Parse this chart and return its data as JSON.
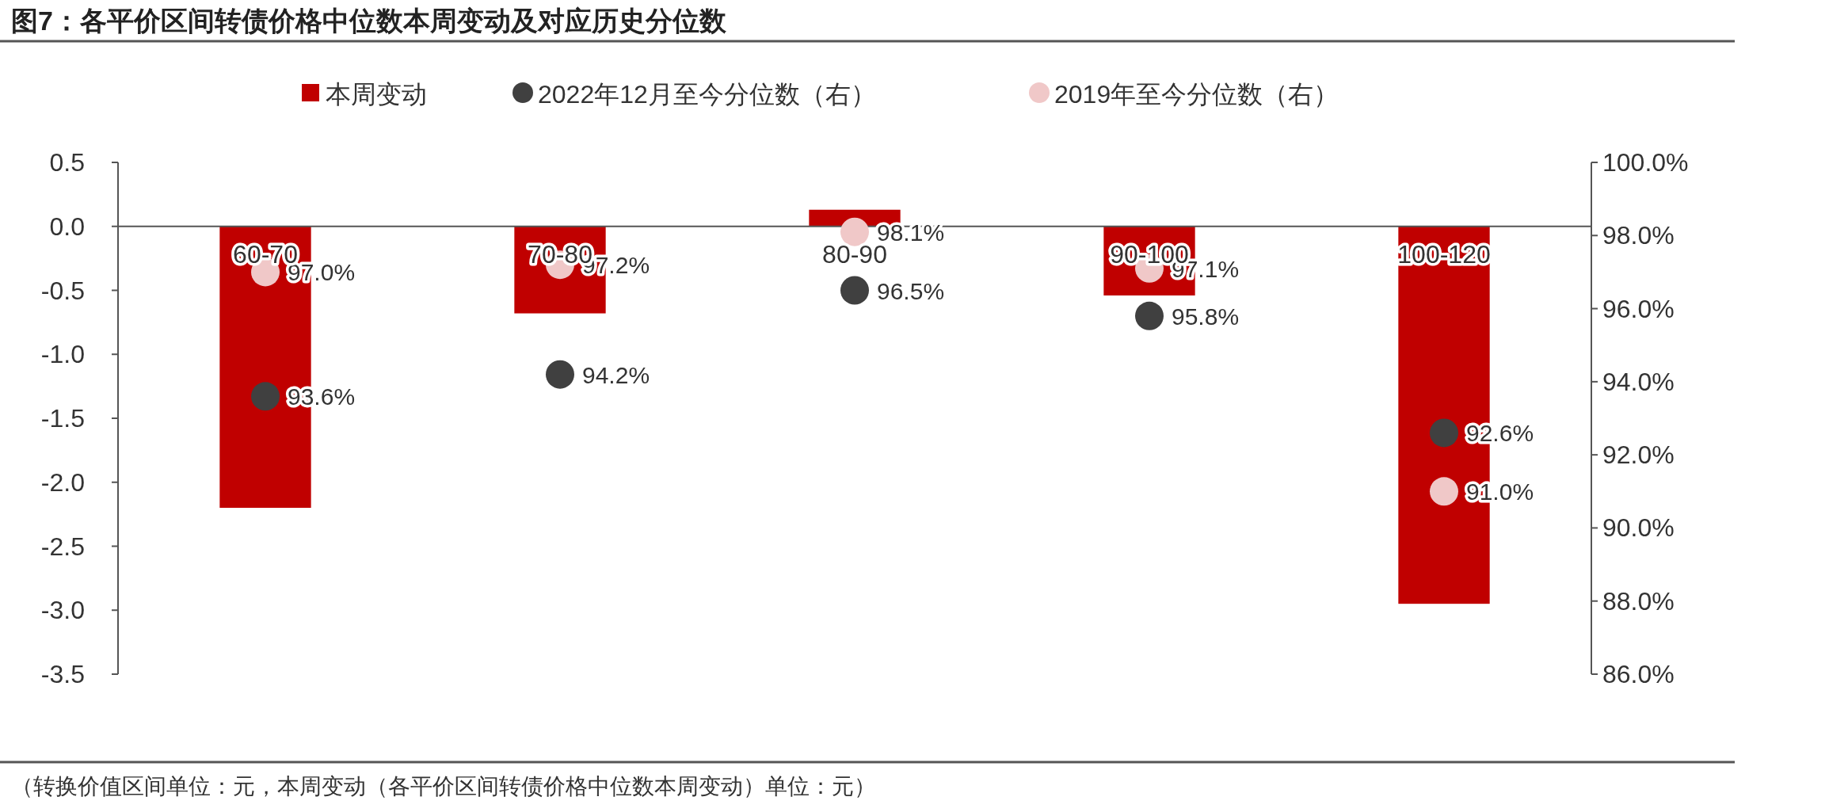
{
  "chart_data": {
    "type": "bar",
    "title": "图7：各平价区间转债价格中位数本周变动及对应历史分位数",
    "categories": [
      "60-70",
      "70-80",
      "80-90",
      "90-100",
      "100-120"
    ],
    "series": [
      {
        "name": "本周变动",
        "color": "#c00000",
        "values": [
          -2.2,
          -0.68,
          0.13,
          -0.54,
          -2.95
        ]
      },
      {
        "name": "2022年12月至今分位数（右）",
        "type": "scatter",
        "axis": "y2",
        "color": "#404040",
        "values": [
          93.6,
          94.2,
          96.5,
          95.8,
          92.6
        ],
        "value_labels": [
          "93.6%",
          "94.2%",
          "96.5%",
          "95.8%",
          "92.6%"
        ]
      },
      {
        "name": "2019年至今分位数（右）",
        "type": "scatter",
        "axis": "y2",
        "color": "#f0c8c8",
        "values": [
          97.0,
          97.2,
          98.1,
          97.1,
          91.0
        ],
        "value_labels": [
          "97.0%",
          "97.2%",
          "98.1%",
          "97.1%",
          "91.0%"
        ]
      }
    ],
    "ylim": [
      -3.5,
      0.5
    ],
    "yticks": [
      {
        "value": -3.5,
        "label": "-3.5"
      },
      {
        "value": -3.0,
        "label": "-3.0"
      },
      {
        "value": -2.5,
        "label": "-2.5"
      },
      {
        "value": -2.0,
        "label": "-2.0"
      },
      {
        "value": -1.5,
        "label": "-1.5"
      },
      {
        "value": -1.0,
        "label": "-1.0"
      },
      {
        "value": -0.5,
        "label": "-0.5"
      },
      {
        "value": 0,
        "label": "0.0"
      },
      {
        "value": 0.5,
        "label": "0.5"
      }
    ],
    "y2lim": [
      86,
      100
    ],
    "y2ticks": [
      {
        "value": 86,
        "label": "86.0%"
      },
      {
        "value": 88,
        "label": "88.0%"
      },
      {
        "value": 90,
        "label": "90.0%"
      },
      {
        "value": 92,
        "label": "92.0%"
      },
      {
        "value": 94,
        "label": "94.0%"
      },
      {
        "value": 96,
        "label": "96.0%"
      },
      {
        "value": 98,
        "label": "98.0%"
      },
      {
        "value": 100,
        "label": "100.0%"
      }
    ],
    "legend": "top",
    "annotations": [
      "（转换价值区间单位：元，本周变动（各平价区间转债价格中位数本周变动）单位：元）"
    ]
  }
}
